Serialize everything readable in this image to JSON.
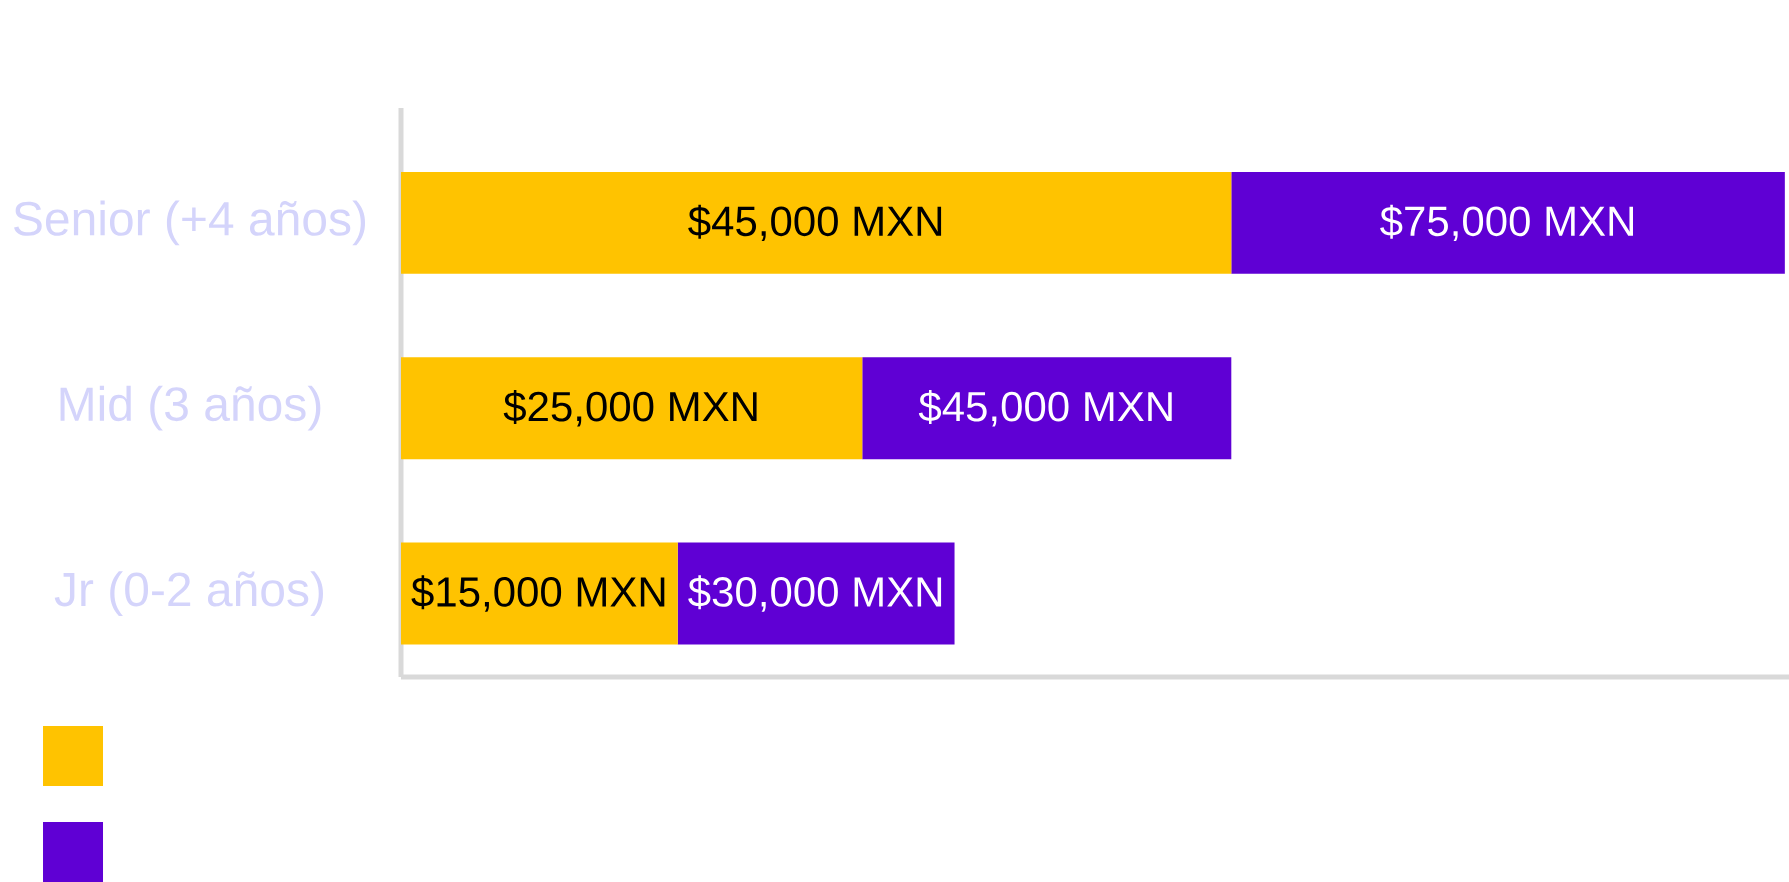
{
  "chart_data": {
    "type": "bar",
    "orientation": "horizontal",
    "stacked": true,
    "categories": [
      "Senior (+4 años)",
      "Mid (3 años)",
      "Jr (0-2 años)"
    ],
    "series": [
      {
        "color": "#ffc300",
        "values": [
          45000,
          25000,
          15000
        ],
        "value_labels": [
          "$45,000 MXN",
          "$25,000 MXN",
          "$15,000 MXN"
        ]
      },
      {
        "color": "#5f00d4",
        "values": [
          30000,
          20000,
          15000
        ]
      }
    ],
    "totals": [
      "$75,000 MXN",
      "$45,000 MXN",
      "$30,000 MXN"
    ],
    "tick_labels": "y"
  }
}
